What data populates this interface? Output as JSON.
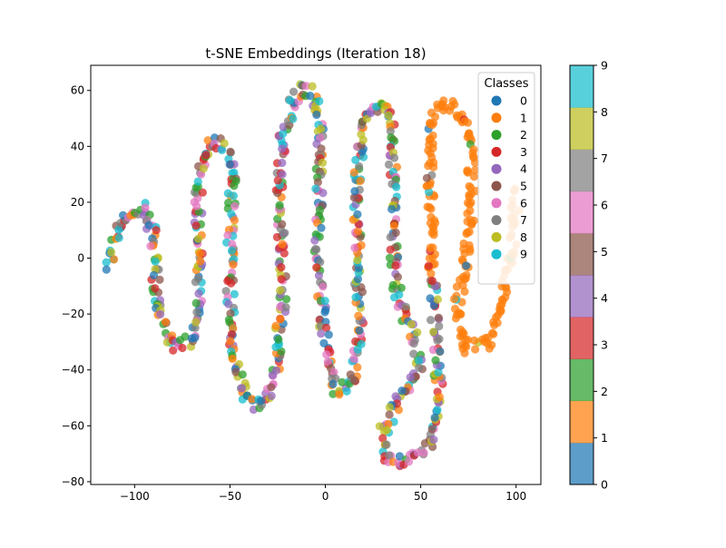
{
  "chart_data": {
    "type": "scatter",
    "title": "t-SNE Embeddings (Iteration 18)",
    "xlabel": "",
    "ylabel": "",
    "xlim": [
      -123,
      113
    ],
    "ylim": [
      -81,
      69
    ],
    "x_ticks": [
      -100,
      -50,
      0,
      50,
      100
    ],
    "y_ticks": [
      -80,
      -60,
      -40,
      -20,
      0,
      20,
      40,
      60
    ],
    "x_tick_labels": [
      "−100",
      "−50",
      "0",
      "50",
      "100"
    ],
    "y_tick_labels": [
      "−80",
      "−60",
      "−40",
      "−20",
      "0",
      "20",
      "40",
      "60"
    ],
    "grid": false,
    "legend": {
      "title": "Classes",
      "placement": "top-right",
      "entries": [
        "0",
        "1",
        "2",
        "3",
        "4",
        "5",
        "6",
        "7",
        "8",
        "9"
      ]
    },
    "colorbar": {
      "min": 0,
      "max": 9,
      "ticks": [
        "0",
        "1",
        "2",
        "3",
        "4",
        "5",
        "6",
        "7",
        "8",
        "9"
      ]
    },
    "class_colors": [
      "#1f77b4",
      "#ff7f0e",
      "#2ca02c",
      "#d62728",
      "#9467bd",
      "#8c564b",
      "#e377c2",
      "#7f7f7f",
      "#bcbd22",
      "#17becf"
    ],
    "path_vertices": [
      [
        -113,
        -3
      ],
      [
        -110,
        8
      ],
      [
        -103,
        17
      ],
      [
        -95,
        18
      ],
      [
        -90,
        10
      ],
      [
        -89,
        -5
      ],
      [
        -88,
        -20
      ],
      [
        -80,
        -31
      ],
      [
        -72,
        -31
      ],
      [
        -66,
        -22
      ],
      [
        -66,
        -5
      ],
      [
        -67,
        10
      ],
      [
        -66,
        30
      ],
      [
        -60,
        42
      ],
      [
        -53,
        41
      ],
      [
        -48,
        30
      ],
      [
        -50,
        10
      ],
      [
        -50,
        -10
      ],
      [
        -48,
        -35
      ],
      [
        -40,
        -52
      ],
      [
        -32,
        -52
      ],
      [
        -26,
        -40
      ],
      [
        -22,
        -10
      ],
      [
        -24,
        20
      ],
      [
        -22,
        45
      ],
      [
        -15,
        60
      ],
      [
        -7,
        60
      ],
      [
        -3,
        50
      ],
      [
        -3,
        25
      ],
      [
        -4,
        0
      ],
      [
        0,
        -30
      ],
      [
        5,
        -47
      ],
      [
        14,
        -46
      ],
      [
        18,
        -30
      ],
      [
        17,
        0
      ],
      [
        16,
        25
      ],
      [
        20,
        50
      ],
      [
        28,
        55
      ],
      [
        35,
        50
      ],
      [
        36,
        20
      ],
      [
        36,
        -10
      ],
      [
        45,
        -25
      ],
      [
        50,
        -40
      ],
      [
        40,
        -48
      ],
      [
        30,
        -62
      ],
      [
        33,
        -72
      ],
      [
        43,
        -73
      ],
      [
        54,
        -66
      ],
      [
        60,
        -52
      ],
      [
        56,
        -5
      ],
      [
        55,
        40
      ],
      [
        57,
        52
      ],
      [
        65,
        55
      ],
      [
        75,
        48
      ],
      [
        77,
        25
      ],
      [
        74,
        0
      ],
      [
        69,
        -20
      ],
      [
        72,
        -32
      ],
      [
        85,
        -30
      ],
      [
        92,
        -15
      ],
      [
        98,
        0
      ],
      [
        100,
        25
      ]
    ],
    "class_segments": [
      {
        "from": 0,
        "to": 48,
        "classes": "mixed 0-9"
      },
      {
        "from": 49,
        "to": 61,
        "classes": "mostly 1"
      }
    ]
  }
}
